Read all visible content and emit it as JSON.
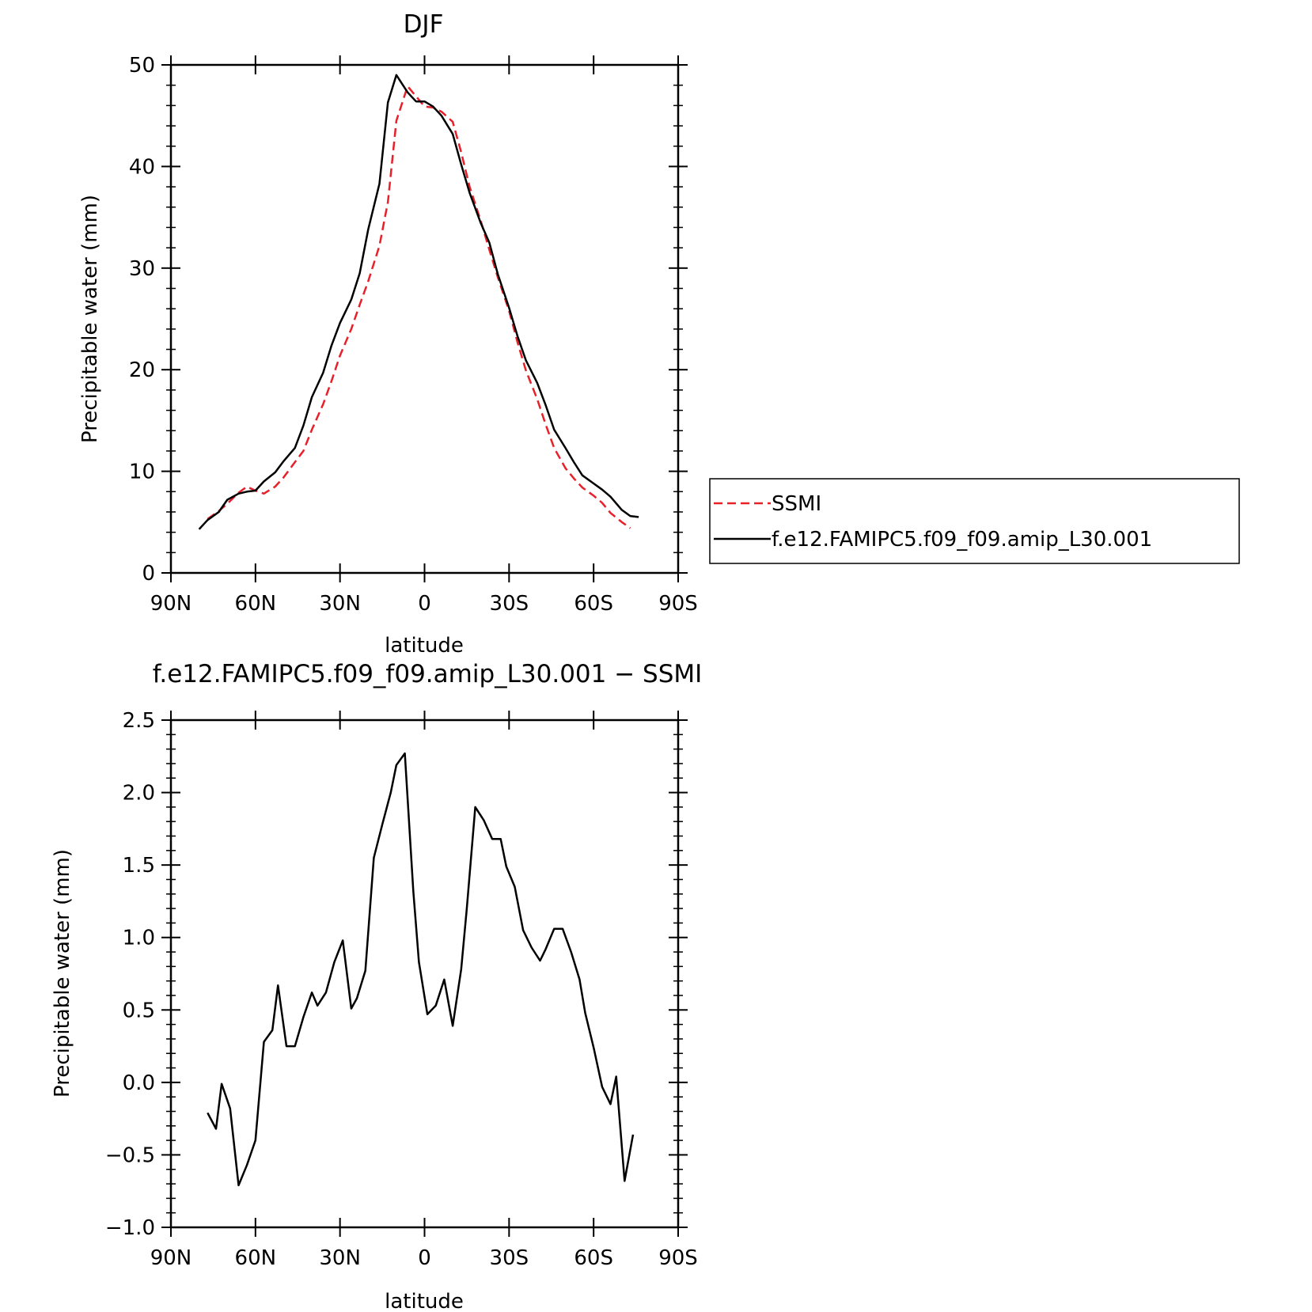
{
  "chart_data": [
    {
      "type": "line",
      "title": "DJF",
      "xlabel": "latitude",
      "ylabel": "Precipitable water (mm)",
      "xlim": [
        -90,
        90
      ],
      "ylim": [
        0,
        50
      ],
      "xticks": [
        -90,
        -60,
        -30,
        0,
        30,
        60,
        90
      ],
      "xtick_labels": [
        "90N",
        "60N",
        "30N",
        "0",
        "30S",
        "60S",
        "90S"
      ],
      "yticks": [
        0,
        10,
        20,
        30,
        40,
        50
      ],
      "ytick_labels": [
        "0",
        "10",
        "20",
        "30",
        "40",
        "50"
      ],
      "grid": false,
      "legend_position": "right",
      "series": [
        {
          "name": "SSMI",
          "color": "#e8202a",
          "style": "dashed",
          "x": [
            -77,
            -73,
            -70,
            -66,
            -63,
            -60,
            -57,
            -53,
            -50,
            -46,
            -43,
            -40,
            -36,
            -33,
            -30,
            -26,
            -23,
            -20,
            -16,
            -13,
            -10,
            -6,
            -3,
            0,
            3,
            6,
            10,
            13,
            16,
            20,
            23,
            26,
            30,
            33,
            36,
            40,
            43,
            46,
            50,
            53,
            56,
            60,
            63,
            66,
            70,
            73
          ],
          "y": [
            5.3,
            6.1,
            6.8,
            7.9,
            8.5,
            8.1,
            7.8,
            8.5,
            9.4,
            10.9,
            12.0,
            14.1,
            16.6,
            18.9,
            21.4,
            24.0,
            26.4,
            28.7,
            32.2,
            36.5,
            44.5,
            47.9,
            46.9,
            45.9,
            45.8,
            45.4,
            44.4,
            41.4,
            38.0,
            34.6,
            31.8,
            29.1,
            25.8,
            22.7,
            19.9,
            17.1,
            14.6,
            12.3,
            10.3,
            9.3,
            8.4,
            7.6,
            6.9,
            5.9,
            5.0,
            4.4
          ],
          "series_color": "#e8202a"
        },
        {
          "name": "f.e12.FAMIPC5.f09_f09.amip_L30.001",
          "color": "#000000",
          "style": "solid",
          "x": [
            -80,
            -77,
            -73,
            -70,
            -66,
            -63,
            -60,
            -57,
            -53,
            -50,
            -46,
            -43,
            -40,
            -36,
            -33,
            -30,
            -26,
            -23,
            -20,
            -16,
            -13,
            -10,
            -6,
            -3,
            0,
            3,
            6,
            10,
            13,
            16,
            20,
            23,
            26,
            30,
            33,
            36,
            40,
            43,
            46,
            50,
            53,
            56,
            60,
            63,
            66,
            70,
            73,
            76
          ],
          "y": [
            4.3,
            5.2,
            6.0,
            7.2,
            7.8,
            8.0,
            8.1,
            9.0,
            9.9,
            11.0,
            12.3,
            14.5,
            17.3,
            19.7,
            22.4,
            24.6,
            26.9,
            29.5,
            33.8,
            38.3,
            46.3,
            49.0,
            47.3,
            46.4,
            46.4,
            45.9,
            45.0,
            43.2,
            40.2,
            37.4,
            34.4,
            32.5,
            29.4,
            26.1,
            23.3,
            20.9,
            18.7,
            16.5,
            14.1,
            12.3,
            10.9,
            9.6,
            8.8,
            8.2,
            7.5,
            6.2,
            5.6,
            5.5
          ],
          "series_color": "#000000"
        }
      ]
    },
    {
      "type": "line",
      "title": "f.e12.FAMIPC5.f09_f09.amip_L30.001 − SSMI",
      "xlabel": "latitude",
      "ylabel": "Precipitable water (mm)",
      "xlim": [
        -90,
        90
      ],
      "ylim": [
        -1.0,
        2.5
      ],
      "xticks": [
        -90,
        -60,
        -30,
        0,
        30,
        60,
        90
      ],
      "xtick_labels": [
        "90N",
        "60N",
        "30N",
        "0",
        "30S",
        "60S",
        "90S"
      ],
      "yticks": [
        -1.0,
        -0.5,
        0.0,
        0.5,
        1.0,
        1.5,
        2.0,
        2.5
      ],
      "ytick_labels": [
        "−1.0",
        "−0.5",
        "0.0",
        "0.5",
        "1.0",
        "1.5",
        "2.0",
        "2.5"
      ],
      "grid": false,
      "series": [
        {
          "color": "#000000",
          "style": "solid",
          "x": [
            -77,
            -74,
            -72,
            -69,
            -66,
            -63,
            -60,
            -57,
            -54,
            -52,
            -49,
            -46,
            -43,
            -40,
            -38,
            -35,
            -32,
            -29,
            -26,
            -24,
            -21,
            -18,
            -15,
            -12,
            -10,
            -7,
            -4,
            -2,
            1,
            4,
            7,
            10,
            13,
            15,
            18,
            21,
            24,
            27,
            29,
            32,
            35,
            38,
            41,
            43,
            46,
            49,
            52,
            55,
            57,
            60,
            63,
            66,
            68,
            71,
            74
          ],
          "y": [
            -0.21,
            -0.32,
            -0.01,
            -0.18,
            -0.71,
            -0.57,
            -0.4,
            0.28,
            0.36,
            0.67,
            0.25,
            0.25,
            0.45,
            0.62,
            0.53,
            0.62,
            0.83,
            0.98,
            0.51,
            0.58,
            0.77,
            1.55,
            1.78,
            2.0,
            2.19,
            2.27,
            1.32,
            0.83,
            0.47,
            0.53,
            0.71,
            0.39,
            0.78,
            1.2,
            1.9,
            1.81,
            1.68,
            1.68,
            1.49,
            1.35,
            1.05,
            0.93,
            0.84,
            0.92,
            1.06,
            1.06,
            0.9,
            0.71,
            0.48,
            0.24,
            -0.03,
            -0.15,
            0.04,
            -0.68,
            -0.36
          ],
          "series_color": "#000000"
        }
      ]
    }
  ]
}
